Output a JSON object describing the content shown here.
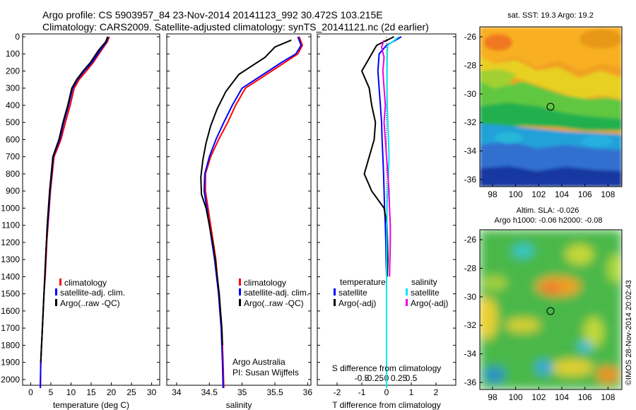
{
  "header": {
    "line1": "Argo profile: CS 5903957_84 23-Nov-2014 20141123_992 30.472S 103.215E",
    "line2": "Climatology: CARS2009. Satellite-adjusted climatology: synTS_20141121.nc (2d earlier)"
  },
  "colors": {
    "climatology": "#ff0000",
    "satellite": "#0000ff",
    "argo": "#000000",
    "satellite_salinity": "#00e8f0",
    "argo_salinity_adj": "#e800e8"
  },
  "depth_ticks": [
    "0",
    "100",
    "200",
    "300",
    "400",
    "500",
    "600",
    "700",
    "800",
    "900",
    "1000",
    "1100",
    "1200",
    "1300",
    "1400",
    "1500",
    "1600",
    "1700",
    "1800",
    "1900",
    "2000"
  ],
  "panels": {
    "temperature": {
      "xlabel": "temperature (deg C)",
      "xticks": [
        "0",
        "5",
        "10",
        "15",
        "20",
        "25",
        "30"
      ],
      "legend": [
        "climatology",
        "satellite-adj. clim.",
        "Argo(..raw -QC)"
      ]
    },
    "salinity": {
      "xlabel": "salinity",
      "xticks": [
        "34",
        "34.5",
        "35",
        "35.5",
        "36"
      ],
      "legend": [
        "climatology",
        "satellite-adj. clim.",
        "Argo(..raw -QC)"
      ],
      "credit1": "Argo Australia",
      "credit2": "PI: Susan Wijffels"
    },
    "difference": {
      "xlabel": "T difference from climatology",
      "top_label": "S difference from climatology",
      "t_ticks": [
        "-2",
        "-1",
        "0",
        "1",
        "2"
      ],
      "s_ticks": [
        "-0.5",
        "-0.25",
        "0",
        "0.25",
        "0.5"
      ],
      "legend_temp_title": "temperature",
      "legend_sal_title": "salinity",
      "legend_temp": [
        "satellite",
        "Argo(-adj)"
      ],
      "legend_sal": [
        "satellite",
        "Argo(-adj)"
      ]
    }
  },
  "maps": {
    "sst_title": "sat. SST: 19.3  Argo: 19.2",
    "sla_title1": "Altim. SLA: -0.026",
    "sla_title2": "Argo h1000: -0.06  h2000: -0.08",
    "lat_ticks": [
      "-26",
      "-28",
      "-30",
      "-32",
      "-34",
      "-36"
    ],
    "lon_ticks": [
      "98",
      "100",
      "102",
      "104",
      "106",
      "108"
    ],
    "credit": "©IMOS 28-Nov-2014 20:02:43"
  },
  "chart_data": [
    {
      "type": "line",
      "title": "",
      "xlabel": "temperature (deg C)",
      "ylabel": "",
      "xlim": [
        -2,
        32
      ],
      "ylim": [
        2050,
        0
      ],
      "series": [
        {
          "name": "climatology",
          "x": [
            19.5,
            19.0,
            17.5,
            15.5,
            13.8,
            12.0,
            10.8,
            9.8,
            8.6,
            7.5,
            5.8,
            4.9,
            4.6,
            4.3,
            4.0,
            3.8,
            3.6,
            3.3,
            3.1,
            2.9,
            2.7,
            2.5,
            2.4
          ],
          "y": [
            0,
            30,
            80,
            150,
            200,
            250,
            300,
            400,
            500,
            600,
            700,
            900,
            1000,
            1100,
            1200,
            1300,
            1400,
            1500,
            1600,
            1700,
            1800,
            1900,
            2050
          ]
        },
        {
          "name": "satellite-adj. clim.",
          "x": [
            19.2,
            18.8,
            17.2,
            15.2,
            13.3,
            11.6,
            10.4,
            9.4,
            8.2,
            7.2,
            5.6,
            4.8,
            4.5,
            4.2,
            3.9,
            3.7,
            3.5,
            3.3,
            3.1,
            2.9,
            2.7,
            2.5,
            2.4
          ],
          "y": [
            0,
            30,
            80,
            150,
            200,
            250,
            300,
            400,
            500,
            600,
            700,
            900,
            1000,
            1100,
            1200,
            1300,
            1400,
            1500,
            1600,
            1700,
            1800,
            1900,
            2050
          ]
        },
        {
          "name": "Argo(..raw -QC)",
          "x": [
            19.1,
            18.6,
            16.8,
            14.8,
            13.0,
            11.4,
            10.2,
            9.2,
            8.0,
            7.0,
            5.5,
            4.7,
            4.4,
            4.1,
            3.9,
            3.7,
            3.5,
            3.3,
            3.1,
            2.9,
            2.7,
            2.5
          ],
          "y": [
            0,
            30,
            80,
            150,
            200,
            250,
            300,
            400,
            500,
            600,
            700,
            900,
            1000,
            1100,
            1200,
            1300,
            1400,
            1500,
            1600,
            1700,
            1800,
            1900
          ]
        }
      ]
    },
    {
      "type": "line",
      "title": "",
      "xlabel": "salinity",
      "ylabel": "",
      "xlim": [
        33.85,
        36.05
      ],
      "ylim": [
        2050,
        0
      ],
      "series": [
        {
          "name": "climatology",
          "x": [
            35.87,
            35.92,
            35.85,
            35.65,
            35.45,
            35.25,
            35.05,
            34.9,
            34.78,
            34.64,
            34.52,
            34.44,
            34.44,
            34.48,
            34.52,
            34.56,
            34.6,
            34.62,
            34.65,
            34.67,
            34.69,
            34.7,
            34.71,
            34.72
          ],
          "y": [
            0,
            50,
            100,
            150,
            200,
            250,
            300,
            400,
            500,
            600,
            700,
            800,
            900,
            1000,
            1100,
            1200,
            1300,
            1400,
            1500,
            1600,
            1700,
            1800,
            1900,
            2050
          ]
        },
        {
          "name": "satellite-adj. clim.",
          "x": [
            35.85,
            35.9,
            35.82,
            35.6,
            35.4,
            35.2,
            35.0,
            34.85,
            34.72,
            34.6,
            34.5,
            34.43,
            34.42,
            34.46,
            34.5,
            34.54,
            34.58,
            34.61,
            34.64,
            34.66,
            34.68,
            34.69,
            34.7,
            34.71
          ],
          "y": [
            0,
            50,
            100,
            150,
            200,
            250,
            300,
            400,
            500,
            600,
            700,
            800,
            900,
            1000,
            1100,
            1200,
            1300,
            1400,
            1500,
            1600,
            1700,
            1800,
            1900,
            2050
          ]
        },
        {
          "name": "Argo(..raw -QC)",
          "x": [
            35.75,
            35.5,
            35.35,
            35.15,
            34.95,
            34.85,
            34.75,
            34.62,
            34.52,
            34.45,
            34.4,
            34.37,
            34.38,
            34.45,
            34.5,
            34.55,
            34.59,
            34.62,
            34.65,
            34.67,
            34.69,
            34.7
          ],
          "y": [
            20,
            60,
            120,
            170,
            220,
            270,
            320,
            420,
            520,
            620,
            720,
            820,
            920,
            1000,
            1100,
            1200,
            1300,
            1400,
            1500,
            1600,
            1700,
            1800
          ]
        }
      ]
    },
    {
      "type": "line",
      "title": "",
      "xlabel": "T difference from climatology",
      "ylabel": "",
      "xlim": [
        -2.8,
        2.8
      ],
      "ylim": [
        2050,
        0
      ],
      "series": [
        {
          "name": "temperature satellite",
          "x": [
            0.6,
            0.0,
            -0.3,
            -0.35,
            -0.3,
            -0.25,
            -0.2,
            -0.18,
            -0.15,
            -0.12,
            -0.1,
            -0.08,
            -0.05,
            -0.03,
            -0.02,
            0.0,
            0.0,
            0.0,
            0.0
          ],
          "y": [
            0,
            50,
            100,
            200,
            300,
            400,
            500,
            600,
            700,
            800,
            900,
            1000,
            1100,
            1200,
            1300,
            1400,
            1600,
            1800,
            2050
          ]
        },
        {
          "name": "temperature Argo(-adj)",
          "x": [
            0.3,
            -0.4,
            -0.6,
            -1.0,
            -0.7,
            -0.6,
            -0.45,
            -0.5,
            -0.7,
            -0.9,
            -0.6,
            -0.1,
            0.02,
            0.04,
            0.05,
            0.03
          ],
          "y": [
            0,
            50,
            100,
            200,
            300,
            400,
            500,
            600,
            700,
            800,
            900,
            1000,
            1100,
            1200,
            1300,
            1400
          ]
        },
        {
          "name": "salinity satellite",
          "x": [
            0.5,
            0.05,
            0.03,
            0.02,
            0.02,
            0.03,
            0.05,
            0.08,
            0.1,
            0.08,
            0.05,
            0.02,
            0.01,
            0.0,
            0.0,
            0.0
          ],
          "y": [
            0,
            50,
            100,
            200,
            300,
            400,
            500,
            600,
            700,
            800,
            900,
            1000,
            1200,
            1400,
            1600,
            2050
          ]
        },
        {
          "name": "salinity Argo(-adj)",
          "x": [
            -0.1,
            -0.2,
            -0.1,
            -0.15,
            -0.1,
            -0.05,
            -0.1,
            -0.05,
            0.0,
            0.05,
            0.1,
            0.12,
            0.15,
            0.15,
            0.12
          ],
          "y": [
            20,
            60,
            120,
            200,
            300,
            400,
            500,
            600,
            700,
            800,
            900,
            1000,
            1100,
            1200,
            1400
          ]
        }
      ]
    }
  ]
}
